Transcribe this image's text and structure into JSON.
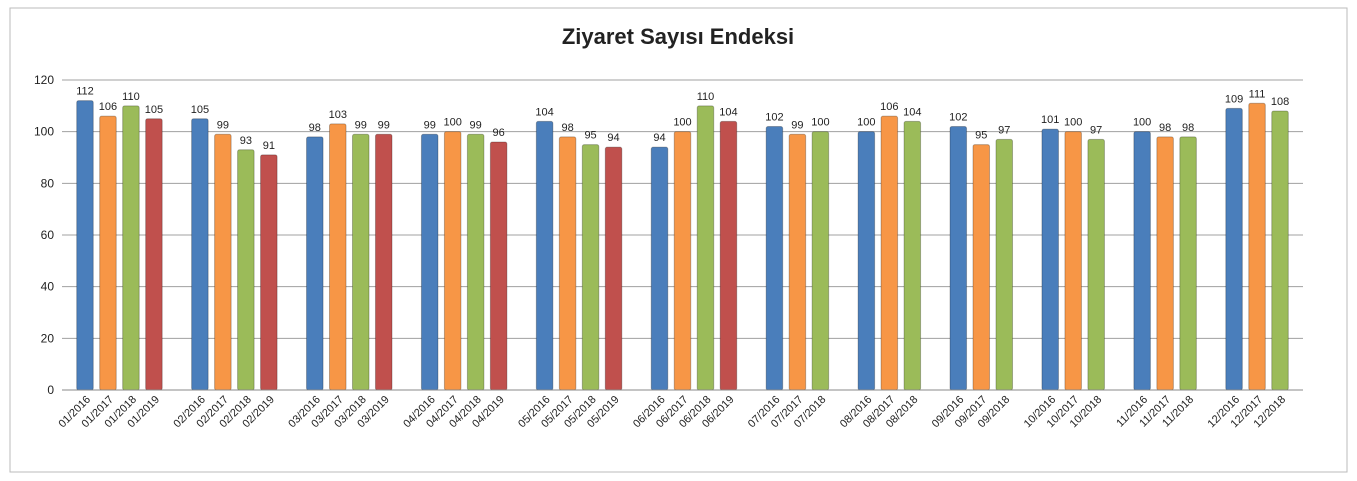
{
  "chart_data": {
    "type": "bar",
    "title": "Ziyaret Sayısı Endeksi",
    "categories": [
      "01/2016",
      "01/2017",
      "01/2018",
      "01/2019",
      "02/2016",
      "02/2017",
      "02/2018",
      "02/2019",
      "03/2016",
      "03/2017",
      "03/2018",
      "03/2019",
      "04/2016",
      "04/2017",
      "04/2018",
      "04/2019",
      "05/2016",
      "05/2017",
      "05/2018",
      "05/2019",
      "06/2016",
      "06/2017",
      "06/2018",
      "06/2019",
      "07/2016",
      "07/2017",
      "07/2018",
      "08/2016",
      "08/2017",
      "08/2018",
      "09/2016",
      "09/2017",
      "09/2018",
      "10/2016",
      "10/2017",
      "10/2018",
      "11/2016",
      "11/2017",
      "11/2018",
      "12/2016",
      "12/2017",
      "12/2018"
    ],
    "values": [
      112,
      106,
      110,
      105,
      105,
      99,
      93,
      91,
      98,
      103,
      99,
      99,
      99,
      100,
      99,
      96,
      104,
      98,
      95,
      94,
      94,
      100,
      110,
      104,
      102,
      99,
      100,
      100,
      106,
      104,
      102,
      95,
      97,
      101,
      100,
      97,
      100,
      98,
      98,
      109,
      111,
      108
    ],
    "colors": [
      "#4a7ebb",
      "#f79646",
      "#9bbb59",
      "#c0504d",
      "#4a7ebb",
      "#f79646",
      "#9bbb59",
      "#c0504d",
      "#4a7ebb",
      "#f79646",
      "#9bbb59",
      "#c0504d",
      "#4a7ebb",
      "#f79646",
      "#9bbb59",
      "#c0504d",
      "#4a7ebb",
      "#f79646",
      "#9bbb59",
      "#c0504d",
      "#4a7ebb",
      "#f79646",
      "#9bbb59",
      "#c0504d",
      "#4a7ebb",
      "#f79646",
      "#9bbb59",
      "#4a7ebb",
      "#f79646",
      "#9bbb59",
      "#4a7ebb",
      "#f79646",
      "#9bbb59",
      "#4a7ebb",
      "#f79646",
      "#9bbb59",
      "#4a7ebb",
      "#f79646",
      "#9bbb59",
      "#4a7ebb",
      "#f79646",
      "#9bbb59"
    ],
    "ylim": [
      0,
      120
    ],
    "yticks": [
      0,
      20,
      40,
      60,
      80,
      100,
      120
    ],
    "grid": true
  }
}
